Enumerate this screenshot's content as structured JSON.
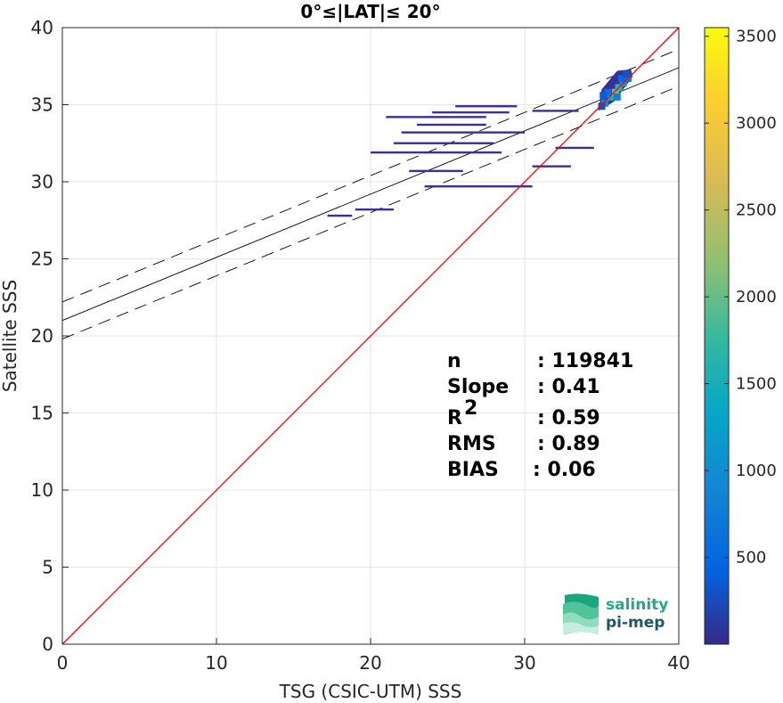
{
  "chart_data": {
    "type": "scatter",
    "title": "0°≤|LAT|≤ 20°",
    "xlabel": "TSG (CSIC-UTM) SSS",
    "ylabel": "Satellite SSS",
    "xlim": [
      0,
      40
    ],
    "ylim": [
      0,
      40
    ],
    "xticks": [
      "0",
      "10",
      "20",
      "30",
      "40"
    ],
    "yticks": [
      "0",
      "5",
      "10",
      "15",
      "20",
      "25",
      "30",
      "35",
      "40"
    ],
    "grid": true,
    "colorbar": {
      "range": [
        0,
        3550
      ],
      "ticks": [
        "500",
        "1000",
        "1500",
        "2000",
        "2500",
        "3000",
        "3500"
      ],
      "colormap": "parula"
    },
    "reference_line": {
      "slope": 1,
      "intercept": 0,
      "color": "#ff0000"
    },
    "fit_line": {
      "slope": 0.41,
      "intercept": 21.0,
      "band": 1.2,
      "color": "#000000"
    },
    "stats": [
      {
        "label": "n",
        "value": ": 119841"
      },
      {
        "label": "Slope",
        "value": ": 0.41"
      },
      {
        "label": "R",
        "sup": "2",
        "value": ": 0.59"
      },
      {
        "label": "RMS",
        "value": ": 0.89"
      },
      {
        "label": "BIAS",
        "value": ": 0.06"
      }
    ],
    "density_segments": [
      {
        "x0": 17.2,
        "x1": 18.8,
        "y": 27.8
      },
      {
        "x0": 19.0,
        "x1": 21.5,
        "y": 28.2
      },
      {
        "x0": 23.5,
        "x1": 30.5,
        "y": 29.7
      },
      {
        "x0": 22.5,
        "x1": 26.0,
        "y": 30.7
      },
      {
        "x0": 20.0,
        "x1": 28.5,
        "y": 31.9
      },
      {
        "x0": 21.5,
        "x1": 28.0,
        "y": 32.5
      },
      {
        "x0": 22.0,
        "x1": 30.0,
        "y": 33.2
      },
      {
        "x0": 23.0,
        "x1": 27.5,
        "y": 33.7
      },
      {
        "x0": 21.0,
        "x1": 27.5,
        "y": 34.2
      },
      {
        "x0": 24.0,
        "x1": 29.0,
        "y": 34.5
      },
      {
        "x0": 25.5,
        "x1": 29.5,
        "y": 34.9
      },
      {
        "x0": 30.5,
        "x1": 33.5,
        "y": 34.6
      },
      {
        "x0": 32.0,
        "x1": 34.5,
        "y": 32.2
      },
      {
        "x0": 30.5,
        "x1": 33.0,
        "y": 31.0
      }
    ],
    "density_cluster": [
      {
        "x": 35.2,
        "y": 35.1,
        "v": 900
      },
      {
        "x": 35.6,
        "y": 35.5,
        "v": 1500
      },
      {
        "x": 35.9,
        "y": 35.8,
        "v": 2100
      },
      {
        "x": 36.1,
        "y": 36.1,
        "v": 1700
      },
      {
        "x": 36.4,
        "y": 36.4,
        "v": 1100
      },
      {
        "x": 36.7,
        "y": 36.7,
        "v": 700
      },
      {
        "x": 35.4,
        "y": 35.8,
        "v": 600
      },
      {
        "x": 36.0,
        "y": 35.5,
        "v": 800
      },
      {
        "x": 36.3,
        "y": 36.7,
        "v": 500
      },
      {
        "x": 35.1,
        "y": 35.6,
        "v": 400
      },
      {
        "x": 36.6,
        "y": 37.0,
        "v": 300
      },
      {
        "x": 35.0,
        "y": 34.9,
        "v": 300
      }
    ]
  },
  "logo": {
    "line1": "salinity",
    "line2": "pi-mep"
  }
}
